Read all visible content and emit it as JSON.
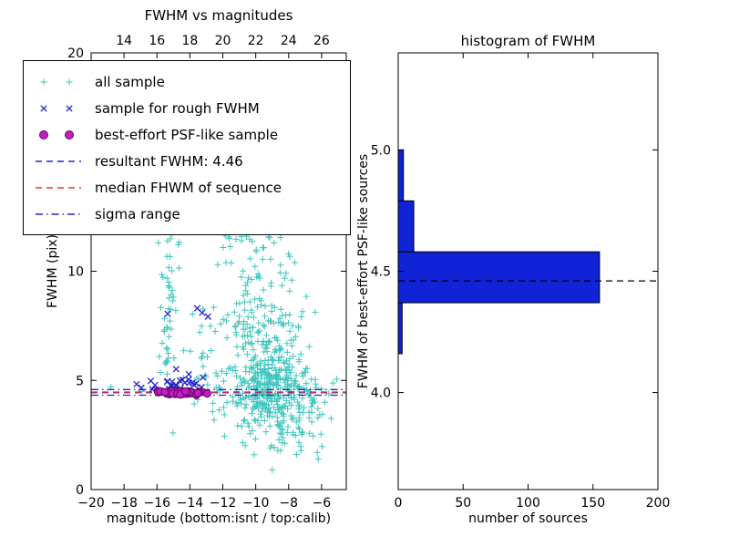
{
  "colors": {
    "background": "#ffffff",
    "axis": "#000000",
    "all_sample": "#3fc6be",
    "rough_sample": "#2424cf",
    "psf_sample_fill": "#c21dc2",
    "psf_sample_edge": "#6a006a",
    "median_red": "#e03a2f",
    "hist_bar": "#1023d6"
  },
  "legend": {
    "items": [
      {
        "label": "all sample",
        "type": "plus",
        "color": "#3fc6be"
      },
      {
        "label": "sample for rough FWHM",
        "type": "x",
        "color": "#2424cf"
      },
      {
        "label": "best-effort PSF-like sample",
        "type": "circle",
        "color": "#c21dc2",
        "edge_color": "#6a006a"
      },
      {
        "label": "resultant FWHM: 4.46",
        "type": "dashed",
        "color": "#2424cf"
      },
      {
        "label": "median FHWM of sequence",
        "type": "dashed",
        "color": "#e03a2f"
      },
      {
        "label": "sigma range",
        "type": "dashdot",
        "color": "#2424cf"
      }
    ]
  },
  "chart_data": [
    {
      "type": "scatter",
      "title": "FWHM vs magnitudes",
      "xlabel": "magnitude (bottom:isnt / top:calib)",
      "ylabel": "FWHM (pix)",
      "xlim": [
        -20,
        -4.5
      ],
      "ylim": [
        0,
        20
      ],
      "x_ticks_bottom": [
        -20,
        -18,
        -16,
        -14,
        -12,
        -10,
        -8,
        -6
      ],
      "x_tick_labels_bottom": [
        "−20",
        "−18",
        "−16",
        "−14",
        "−12",
        "−10",
        "−8",
        "−6"
      ],
      "x_ticks_top_positions": [
        -18,
        -16,
        -14,
        -12,
        -10,
        -8,
        -6
      ],
      "x_tick_labels_top": [
        "14",
        "16",
        "18",
        "20",
        "22",
        "24",
        "26"
      ],
      "y_ticks": [
        0,
        5,
        10,
        15,
        20
      ],
      "y_tick_labels": [
        "0",
        "5",
        "10",
        "15",
        "20"
      ],
      "series": [
        {
          "name": "all sample",
          "marker": "plus",
          "color": "#3fc6be",
          "clusters": [
            {
              "cx": -9.4,
              "cy": 4.6,
              "sx": 1.05,
              "sy": 0.85,
              "n": 260
            },
            {
              "cx": -9.2,
              "cy": 7.0,
              "sx": 1.25,
              "sy": 1.8,
              "n": 150
            },
            {
              "cx": -9.9,
              "cy": 11.5,
              "sx": 1.05,
              "sy": 2.2,
              "n": 80
            },
            {
              "cx": -15.35,
              "cy": 8.2,
              "sx": 0.27,
              "sy": 2.3,
              "n": 55
            },
            {
              "cx": -11.3,
              "cy": 16.2,
              "sx": 1.6,
              "sy": 2.1,
              "n": 45
            },
            {
              "cx": -12.6,
              "cy": 6.2,
              "sx": 1.1,
              "sy": 1.6,
              "n": 45
            },
            {
              "cx": -7.2,
              "cy": 4.1,
              "sx": 0.85,
              "sy": 0.9,
              "n": 70
            },
            {
              "cx": -8.2,
              "cy": 2.7,
              "sx": 0.8,
              "sy": 0.5,
              "n": 30
            },
            {
              "cx": -10.4,
              "cy": 13.6,
              "sx": 0.9,
              "sy": 1.1,
              "n": 30
            }
          ],
          "points": [
            [
              -18.8,
              4.7
            ],
            [
              -16.9,
              4.5
            ],
            [
              -6.2,
              1.4
            ],
            [
              -6.6,
              3.1
            ],
            [
              -5.8,
              4.0
            ],
            [
              -9.0,
              0.9
            ],
            [
              -10.1,
              1.6
            ]
          ]
        },
        {
          "name": "sample for rough FWHM",
          "marker": "x",
          "color": "#2424cf",
          "clusters": [
            {
              "cx": -14.7,
              "cy": 4.78,
              "sx": 0.8,
              "sy": 0.22,
              "n": 30
            }
          ],
          "points": [
            [
              -13.25,
              8.1
            ],
            [
              -12.9,
              7.92
            ],
            [
              -13.55,
              8.3
            ],
            [
              -15.35,
              8.05
            ]
          ]
        },
        {
          "name": "best-effort PSF-like sample",
          "marker": "circle",
          "color": "#c21dc2",
          "edge_color": "#6a006a",
          "clusters": [
            {
              "cx": -14.55,
              "cy": 4.43,
              "sx": 0.7,
              "sy": 0.05,
              "n": 48
            }
          ],
          "points": []
        }
      ],
      "lines": [
        {
          "name": "resultant FWHM: 4.46",
          "value": 4.46,
          "style": "dashed",
          "color": "#2424cf"
        },
        {
          "name": "median FHWM of sequence",
          "value": 4.43,
          "style": "dashed",
          "color": "#e03a2f"
        },
        {
          "name": "sigma range",
          "values": [
            4.32,
            4.58
          ],
          "style": "dashdot",
          "color": "#2424cf"
        }
      ]
    },
    {
      "type": "bar",
      "orientation": "horizontal",
      "title": "histogram of FWHM",
      "xlabel": "number of sources",
      "ylabel": "FWHM of best-effort PSF-like sources",
      "xlim": [
        0,
        200
      ],
      "ylim": [
        3.6,
        5.4
      ],
      "x_ticks": [
        0,
        50,
        100,
        150,
        200
      ],
      "x_tick_labels": [
        "0",
        "50",
        "100",
        "150",
        "200"
      ],
      "y_ticks": [
        4.0,
        4.5,
        5.0
      ],
      "y_tick_labels": [
        "4.0",
        "4.5",
        "5.0"
      ],
      "bar_color": "#1023d6",
      "bar_edge_color": "#000000",
      "bins": [
        {
          "fwhm_from": 4.16,
          "fwhm_to": 4.37,
          "count": 3
        },
        {
          "fwhm_from": 4.37,
          "fwhm_to": 4.58,
          "count": 155
        },
        {
          "fwhm_from": 4.58,
          "fwhm_to": 4.79,
          "count": 12
        },
        {
          "fwhm_from": 4.79,
          "fwhm_to": 5.0,
          "count": 4
        }
      ],
      "median_line": {
        "value": 4.46,
        "style": "dashed",
        "color": "#000000"
      }
    }
  ]
}
